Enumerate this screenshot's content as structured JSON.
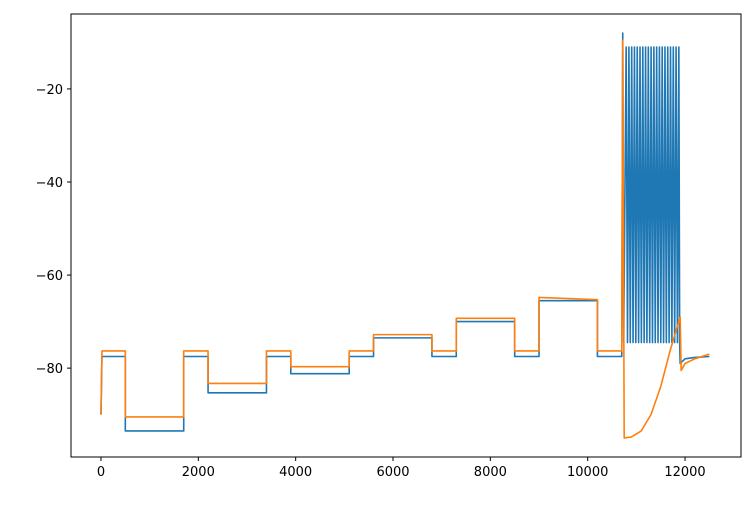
{
  "chart_data": {
    "type": "line",
    "xlim": [
      -616,
      13150
    ],
    "ylim": [
      -99.1,
      -3.9
    ],
    "xticks": [
      0,
      2000,
      4000,
      6000,
      8000,
      10000,
      12000
    ],
    "yticks": [
      {
        "value": -80,
        "label": "−80"
      },
      {
        "value": -60,
        "label": "−60"
      },
      {
        "value": -40,
        "label": "−40"
      },
      {
        "value": -20,
        "label": "−20"
      }
    ],
    "series": [
      {
        "color": "#1f77b4",
        "x": [
          0,
          20,
          500,
          500,
          1700,
          1700,
          2200,
          2200,
          3400,
          3400,
          3900,
          3900,
          5100,
          5100,
          5600,
          5600,
          6800,
          6800,
          7300,
          7300,
          8500,
          8500,
          9000,
          9000,
          10200,
          10200,
          10700,
          10720,
          10740,
          10790,
          10818,
          10847,
          10875,
          10904,
          10932,
          10961,
          10989,
          11018,
          11046,
          11075,
          11103,
          11132,
          11160,
          11189,
          11217,
          11246,
          11274,
          11303,
          11331,
          11360,
          11388,
          11417,
          11445,
          11474,
          11502,
          11531,
          11559,
          11588,
          11616,
          11645,
          11673,
          11702,
          11730,
          11759,
          11787,
          11816,
          11844,
          11873,
          11890,
          11900,
          12000,
          12200,
          12500
        ],
        "values": [
          -90,
          -77.5,
          -77.5,
          -93.5,
          -93.5,
          -77.5,
          -77.5,
          -85.3,
          -85.3,
          -77.5,
          -77.5,
          -81.2,
          -81.2,
          -77.5,
          -77.5,
          -73.5,
          -73.5,
          -77.5,
          -77.5,
          -70,
          -70,
          -77.5,
          -77.5,
          -65.5,
          -65.5,
          -77.5,
          -77.5,
          -8,
          -74.5,
          -11,
          -74.5,
          -11,
          -74.5,
          -11,
          -74.5,
          -11,
          -74.5,
          -11,
          -74.5,
          -11,
          -74.5,
          -11,
          -74.5,
          -11,
          -74.5,
          -11,
          -74.5,
          -11,
          -74.5,
          -11,
          -74.5,
          -11,
          -74.5,
          -11,
          -74.5,
          -11,
          -74.5,
          -11,
          -74.5,
          -11,
          -74.5,
          -11,
          -74.5,
          -11,
          -74.5,
          -11,
          -74.5,
          -11,
          -74.5,
          -79,
          -78,
          -77.7,
          -77.5
        ]
      },
      {
        "color": "#ff7f0e",
        "x": [
          0,
          20,
          500,
          500,
          1700,
          1700,
          2200,
          2200,
          3400,
          3400,
          3900,
          3900,
          5100,
          5100,
          5600,
          5600,
          6800,
          6800,
          7300,
          7300,
          8500,
          8500,
          9000,
          9000,
          10200,
          10200,
          10700,
          10720,
          10750,
          10900,
          11100,
          11300,
          11500,
          11700,
          11900,
          11920,
          12000,
          12200,
          12500
        ],
        "values": [
          -90,
          -76.3,
          -76.3,
          -90.5,
          -90.5,
          -76.3,
          -76.3,
          -83.3,
          -83.3,
          -76.3,
          -76.3,
          -79.7,
          -79.7,
          -76.3,
          -76.3,
          -72.8,
          -72.8,
          -76.3,
          -76.3,
          -69.3,
          -69.3,
          -76.3,
          -76.3,
          -64.8,
          -65.3,
          -76.3,
          -76.3,
          -9.5,
          -95,
          -94.8,
          -93.5,
          -90,
          -84,
          -76,
          -69,
          -80.5,
          -79,
          -78,
          -77
        ]
      }
    ]
  }
}
